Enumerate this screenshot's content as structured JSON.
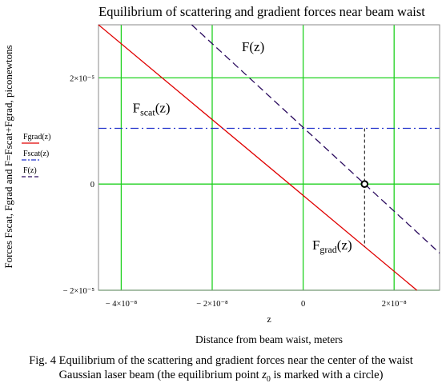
{
  "chart_data": {
    "type": "line",
    "title": "Equilibrium of scattering and gradient forces near beam waist",
    "xlabel_var": "z",
    "xlabel": "Distance from beam waist, meters",
    "ylabel": "Forces Fscat, Fgrad and F=Fscat+Fgrad, piconewtons",
    "xlim": [
      -4.5e-08,
      3e-08
    ],
    "ylim": [
      -2e-05,
      3e-05
    ],
    "grid": true,
    "x_ticks": [
      {
        "value": -4e-08,
        "label": "− 4×10⁻⁸"
      },
      {
        "value": -2e-08,
        "label": "− 2×10⁻⁸"
      },
      {
        "value": 0,
        "label": "0"
      },
      {
        "value": 2e-08,
        "label": "2×10⁻⁸"
      }
    ],
    "y_ticks": [
      {
        "value": 2e-05,
        "label": "2×10⁻⁵"
      },
      {
        "value": 0,
        "label": "0"
      },
      {
        "value": -2e-05,
        "label": "− 2×10⁻⁵"
      }
    ],
    "series": [
      {
        "name": "Fgrad(z)",
        "color": "#e00000",
        "style": "solid",
        "x": [
          -4.5e-08,
          2.5e-08
        ],
        "y": [
          3e-05,
          -2e-05
        ]
      },
      {
        "name": "Fscat(z)",
        "color": "#2233cc",
        "style": "dashdot",
        "x": [
          -4.5e-08,
          3e-08
        ],
        "y": [
          1.05e-05,
          1.05e-05
        ]
      },
      {
        "name": "F(z)",
        "color": "#2a0a5e",
        "style": "dashed",
        "x": [
          -2.45e-08,
          3e-08
        ],
        "y": [
          3e-05,
          -1.3e-05
        ]
      }
    ],
    "equilibrium_point": {
      "x": 1.35e-08,
      "y": 0
    },
    "annotations": [
      {
        "text": "F(z)",
        "x": -1.35e-08,
        "y": 2.5e-05
      },
      {
        "base": "F",
        "sub": "scat",
        "tail": "(z)",
        "x": -3.75e-08,
        "y": 1.35e-05
      },
      {
        "base": "F",
        "sub": "grad",
        "tail": "(z)",
        "x": 2e-09,
        "y": -1.23e-05
      }
    ]
  },
  "caption": {
    "line1": "Fig. 4 Equilibrium of the scattering and gradient forces near the center of the waist",
    "line2_before": "Gaussian laser beam (the equilibrium point ",
    "line2_var": "z",
    "line2_sub": "0",
    "line2_after": " is marked with a circle)"
  }
}
